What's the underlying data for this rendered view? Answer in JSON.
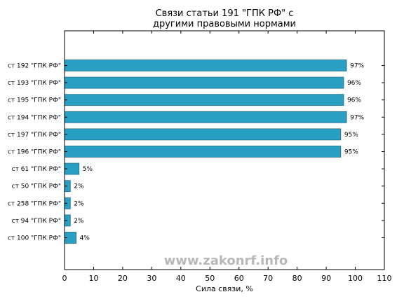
{
  "chart_data": {
    "type": "bar",
    "orientation": "horizontal",
    "title_lines": [
      "Связи статьи 191 \"ГПК РФ\" с",
      "другими правовыми нормами"
    ],
    "xlabel": "Сила связи, %",
    "ylabel": "",
    "xlim": [
      0,
      110
    ],
    "xticks": [
      0,
      10,
      20,
      30,
      40,
      50,
      60,
      70,
      80,
      90,
      100,
      110
    ],
    "grid": false,
    "bar_color": "#2a9fc4",
    "categories": [
      "ст 192 \"ГПК РФ\"",
      "ст 193 \"ГПК РФ\"",
      "ст 195 \"ГПК РФ\"",
      "ст 194 \"ГПК РФ\"",
      "ст 197 \"ГПК РФ\"",
      "ст 196 \"ГПК РФ\"",
      "ст 61 \"ГПК РФ\"",
      "ст 50 \"ГПК РФ\"",
      "ст 258 \"ГПК РФ\"",
      "ст 94 \"ГПК РФ\"",
      "ст 100 \"ГПК РФ\""
    ],
    "values": [
      97,
      96,
      96,
      97,
      95,
      95,
      5,
      2,
      2,
      2,
      4
    ],
    "value_labels": [
      "97%",
      "96%",
      "96%",
      "97%",
      "95%",
      "95%",
      "5%",
      "2%",
      "2%",
      "2%",
      "4%"
    ]
  },
  "watermark": "www.zakonrf.info"
}
